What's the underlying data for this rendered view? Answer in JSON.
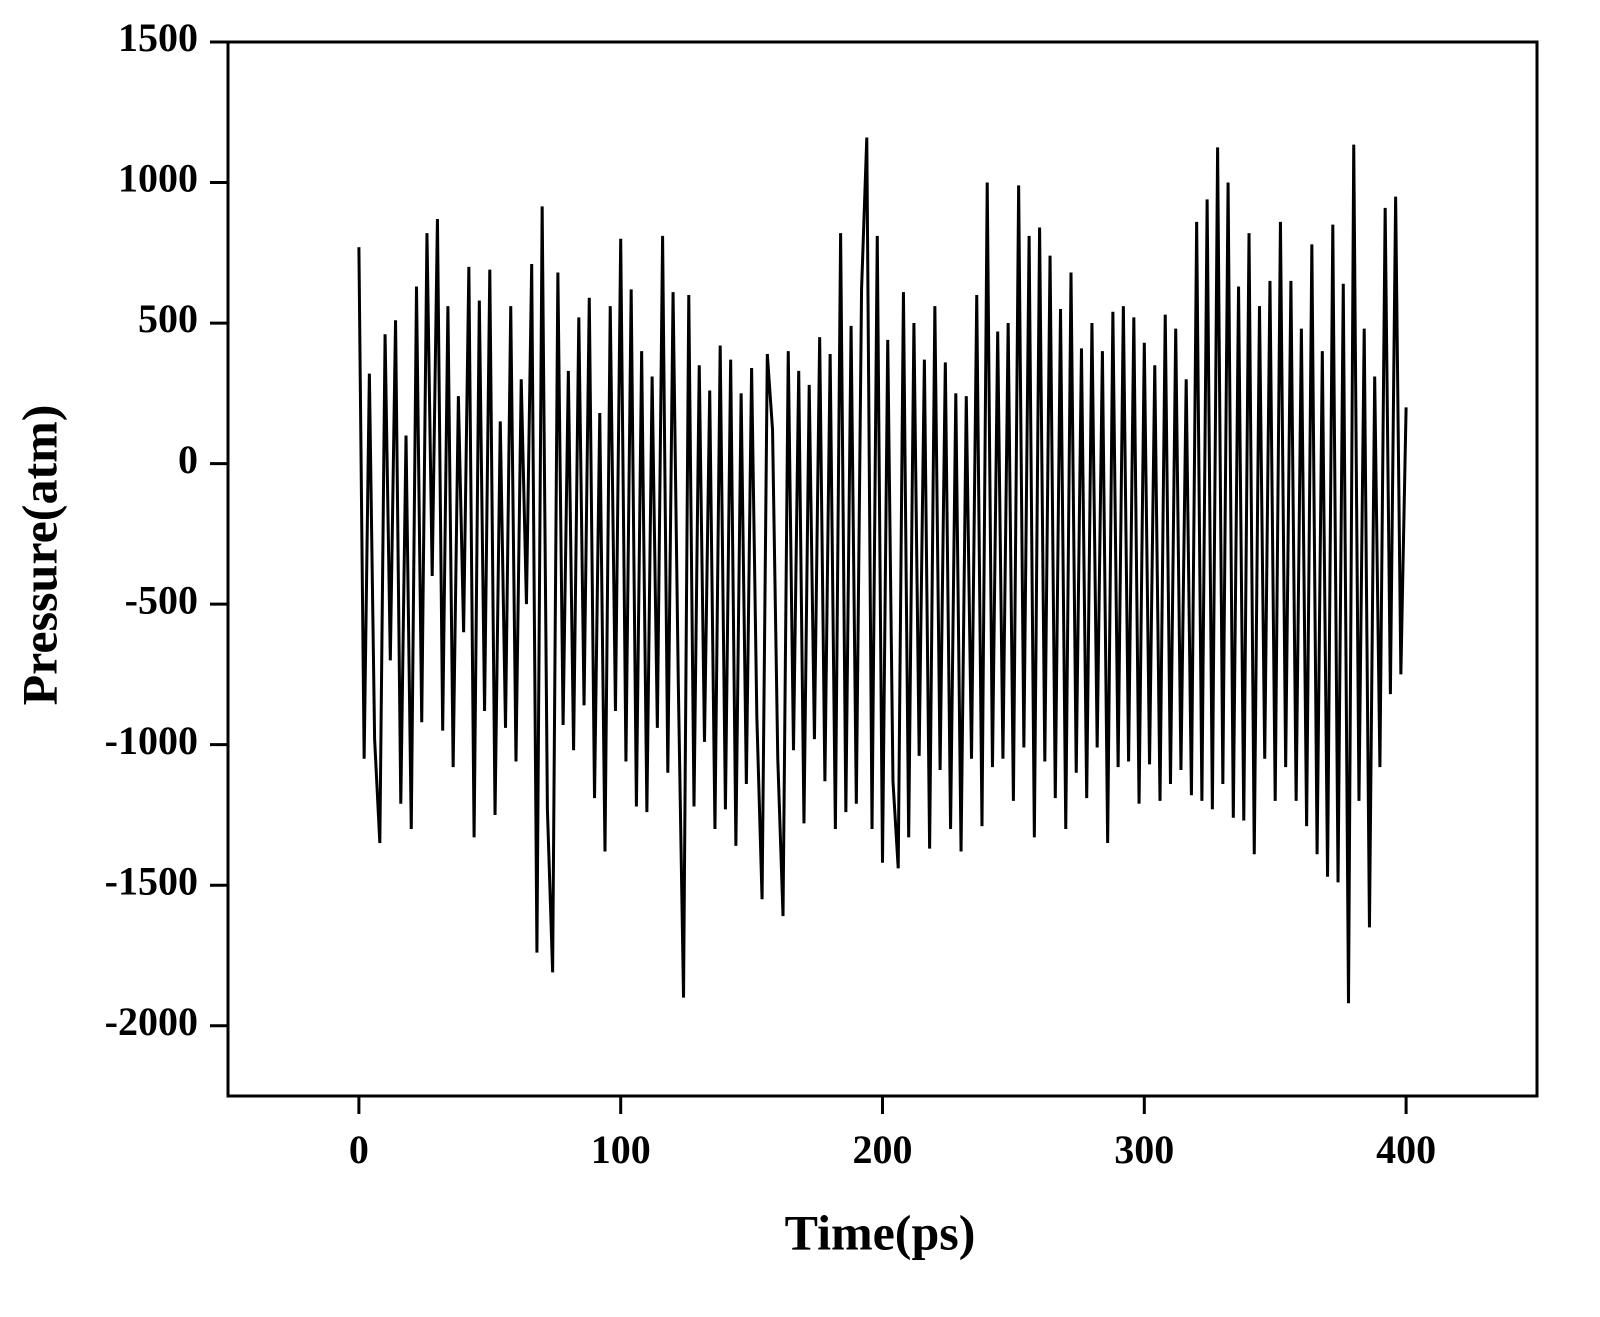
{
  "chart_data": {
    "type": "line",
    "xlabel": "Time(ps)",
    "ylabel": "Pressure(atm)",
    "x": [
      0,
      2,
      4,
      6,
      8,
      10,
      12,
      14,
      16,
      18,
      20,
      22,
      24,
      26,
      28,
      30,
      32,
      34,
      36,
      38,
      40,
      42,
      44,
      46,
      48,
      50,
      52,
      54,
      56,
      58,
      60,
      62,
      64,
      66,
      68,
      70,
      72,
      74,
      76,
      78,
      80,
      82,
      84,
      86,
      88,
      90,
      92,
      94,
      96,
      98,
      100,
      102,
      104,
      106,
      108,
      110,
      112,
      114,
      116,
      118,
      120,
      122,
      124,
      126,
      128,
      130,
      132,
      134,
      136,
      138,
      140,
      142,
      144,
      146,
      148,
      150,
      152,
      154,
      156,
      158,
      160,
      162,
      164,
      166,
      168,
      170,
      172,
      174,
      176,
      178,
      180,
      182,
      184,
      186,
      188,
      190,
      192,
      194,
      196,
      198,
      200,
      202,
      204,
      206,
      208,
      210,
      212,
      214,
      216,
      218,
      220,
      222,
      224,
      226,
      228,
      230,
      232,
      234,
      236,
      238,
      240,
      242,
      244,
      246,
      248,
      250,
      252,
      254,
      256,
      258,
      260,
      262,
      264,
      266,
      268,
      270,
      272,
      274,
      276,
      278,
      280,
      282,
      284,
      286,
      288,
      290,
      292,
      294,
      296,
      298,
      300,
      302,
      304,
      306,
      308,
      310,
      312,
      314,
      316,
      318,
      320,
      322,
      324,
      326,
      328,
      330,
      332,
      334,
      336,
      338,
      340,
      342,
      344,
      346,
      348,
      350,
      352,
      354,
      356,
      358,
      360,
      362,
      364,
      366,
      368,
      370,
      372,
      374,
      376,
      378,
      380,
      382,
      384,
      386,
      388,
      390,
      392,
      394,
      396,
      398,
      400
    ],
    "series": [
      {
        "name": "Pressure",
        "color": "#000000",
        "values": [
          770,
          -1050,
          320,
          -980,
          -1350,
          460,
          -700,
          510,
          -1210,
          100,
          -1300,
          630,
          -920,
          820,
          -400,
          870,
          -950,
          560,
          -1080,
          240,
          -600,
          700,
          -1330,
          580,
          -880,
          690,
          -1250,
          150,
          -940,
          560,
          -1060,
          300,
          -500,
          710,
          -1740,
          915,
          -1230,
          -1810,
          680,
          -930,
          330,
          -1020,
          520,
          -860,
          590,
          -1190,
          180,
          -1380,
          560,
          -880,
          800,
          -1060,
          620,
          -1220,
          400,
          -1240,
          310,
          -940,
          810,
          -1100,
          610,
          -780,
          -1900,
          600,
          -1220,
          350,
          -990,
          260,
          -1300,
          420,
          -1230,
          370,
          -1360,
          250,
          -1140,
          340,
          -900,
          -1550,
          390,
          120,
          -1050,
          -1610,
          400,
          -1020,
          330,
          -1280,
          280,
          -980,
          450,
          -1130,
          390,
          -1300,
          820,
          -1240,
          490,
          -1210,
          620,
          1160,
          -1300,
          810,
          -1420,
          440,
          -1130,
          -1440,
          610,
          -1330,
          500,
          -1040,
          370,
          -1370,
          560,
          -1090,
          360,
          -1300,
          250,
          -1380,
          240,
          -1050,
          600,
          -1290,
          1000,
          -1080,
          470,
          -1050,
          500,
          -1200,
          990,
          -1010,
          810,
          -1330,
          840,
          -1060,
          740,
          -1190,
          550,
          -1300,
          680,
          -1100,
          410,
          -1190,
          500,
          -1010,
          400,
          -1350,
          540,
          -1080,
          560,
          -1060,
          520,
          -1210,
          430,
          -1070,
          350,
          -1200,
          530,
          -1140,
          480,
          -1090,
          300,
          -1180,
          860,
          -1200,
          940,
          -1230,
          1125,
          -1140,
          1000,
          -1260,
          630,
          -1270,
          820,
          -1390,
          560,
          -1050,
          650,
          -1200,
          860,
          -1080,
          650,
          -1200,
          480,
          -1290,
          780,
          -1390,
          400,
          -1470,
          850,
          -1490,
          640,
          -1920,
          1135,
          -1200,
          480,
          -1650,
          310,
          -1080,
          910,
          -820,
          950,
          -750,
          200
        ]
      }
    ],
    "xlim": [
      -50,
      450
    ],
    "xticks": [
      0,
      100,
      200,
      300,
      400
    ],
    "ylim": [
      -2250,
      1500
    ],
    "yticks": [
      -2000,
      -1500,
      -1000,
      -500,
      0,
      500,
      1000,
      1500
    ]
  }
}
